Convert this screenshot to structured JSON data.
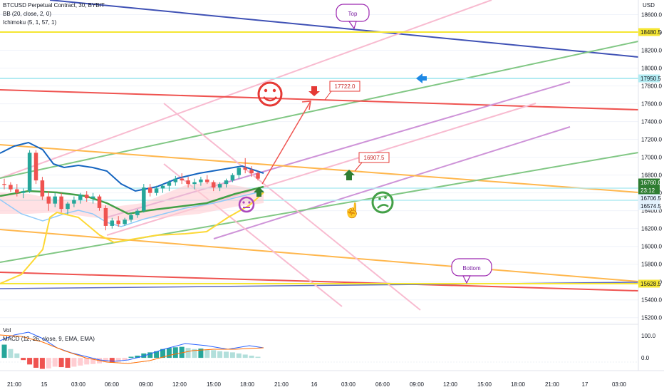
{
  "legend": {
    "symbol": "BTCUSD Perpetual Contract, 30, BYBIT",
    "bb": "BB (20, close, 2, 0)",
    "ichimoku": "Ichimoku (5, 1, 57, 1)",
    "vol": "Vol",
    "macd": "MACD (12, 26, close, 9, EMA, EMA)"
  },
  "price_axis": {
    "currency": "USD",
    "ticks": [
      "18600.0",
      "18400.0",
      "18200.0",
      "18000.0",
      "17800.0",
      "17600.0",
      "17400.0",
      "17200.0",
      "17000.0",
      "16800.0",
      "16600.0",
      "16400.0",
      "16200.0",
      "16000.0",
      "15800.0",
      "15600.0",
      "15400.0",
      "15200.0"
    ]
  },
  "macd_axis": {
    "ticks": [
      "100.0",
      "0.0"
    ]
  },
  "time_axis": {
    "ticks": [
      "21:00",
      "15",
      "03:00",
      "06:00",
      "09:00",
      "12:00",
      "15:00",
      "18:00",
      "21:00",
      "16",
      "03:00",
      "06:00",
      "09:00",
      "12:00",
      "15:00",
      "18:00",
      "21:00",
      "17",
      "03:00"
    ]
  },
  "price_tags": [
    {
      "value": "18480.5",
      "color": "#f5e632",
      "text_color": "#131722"
    },
    {
      "value": "17950.5",
      "color": "#b2ebf2",
      "text_color": "#131722"
    },
    {
      "value": "16760.0",
      "color": "#2e7d32",
      "text_color": "#ffffff"
    },
    {
      "value": "23:12",
      "color": "#2e7d32",
      "text_color": "#ffffff"
    },
    {
      "value": "16706.5",
      "color": "#e3f2fd",
      "text_color": "#131722"
    },
    {
      "value": "16574.5",
      "color": "#e3f2fd",
      "text_color": "#131722"
    },
    {
      "value": "15628.5",
      "color": "#f5e632",
      "text_color": "#131722"
    }
  ],
  "callouts": [
    {
      "name": "top-callout",
      "text": "Top",
      "color": "#9c27b0"
    },
    {
      "name": "bottom-callout",
      "text": "Bottom",
      "color": "#9c27b0"
    },
    {
      "name": "target-17722-callout",
      "text": "17722.0",
      "color": "#e53935"
    },
    {
      "name": "target-16907-callout",
      "text": "16907.5",
      "color": "#e53935"
    }
  ],
  "chart_data": {
    "type": "candlestick",
    "title": "BTCUSD Perpetual Contract, 30, BYBIT",
    "price_range": [
      15150,
      18700
    ],
    "last_price": 16760.0,
    "horizontal_levels": [
      18480.5,
      17950.5,
      16706.5,
      16574.5,
      15628.5
    ],
    "targets": [
      17722.0,
      16907.5
    ],
    "candles_ohlc": [
      [
        16700,
        16760,
        16640,
        16690
      ],
      [
        16690,
        16720,
        16610,
        16640
      ],
      [
        16640,
        16700,
        16560,
        16600
      ],
      [
        16600,
        16650,
        16540,
        16620
      ],
      [
        16620,
        17080,
        16600,
        17050
      ],
      [
        17050,
        17080,
        16700,
        16740
      ],
      [
        16740,
        16780,
        16520,
        16560
      ],
      [
        16560,
        16620,
        16400,
        16480
      ],
      [
        16480,
        16600,
        16440,
        16560
      ],
      [
        16560,
        16600,
        16380,
        16420
      ],
      [
        16420,
        16500,
        16360,
        16480
      ],
      [
        16480,
        16560,
        16440,
        16520
      ],
      [
        16520,
        16600,
        16480,
        16580
      ],
      [
        16580,
        16620,
        16500,
        16540
      ],
      [
        16540,
        16600,
        16480,
        16560
      ],
      [
        16560,
        16580,
        16400,
        16430
      ],
      [
        16430,
        16460,
        16180,
        16230
      ],
      [
        16230,
        16320,
        16200,
        16290
      ],
      [
        16290,
        16340,
        16220,
        16250
      ],
      [
        16250,
        16320,
        16230,
        16300
      ],
      [
        16300,
        16380,
        16270,
        16350
      ],
      [
        16350,
        16420,
        16320,
        16400
      ],
      [
        16400,
        16700,
        16380,
        16660
      ],
      [
        16660,
        16700,
        16560,
        16600
      ],
      [
        16600,
        16680,
        16570,
        16650
      ],
      [
        16650,
        16700,
        16600,
        16680
      ],
      [
        16680,
        16740,
        16620,
        16720
      ],
      [
        16720,
        16790,
        16680,
        16760
      ],
      [
        16760,
        16820,
        16700,
        16740
      ],
      [
        16740,
        16780,
        16660,
        16700
      ],
      [
        16700,
        16760,
        16640,
        16720
      ],
      [
        16720,
        16780,
        16680,
        16750
      ],
      [
        16750,
        16800,
        16700,
        16720
      ],
      [
        16720,
        16740,
        16620,
        16660
      ],
      [
        16660,
        16720,
        16620,
        16700
      ],
      [
        16700,
        16760,
        16660,
        16740
      ],
      [
        16740,
        16820,
        16720,
        16800
      ],
      [
        16800,
        16900,
        16760,
        16880
      ],
      [
        16880,
        16990,
        16820,
        16860
      ],
      [
        16860,
        16900,
        16780,
        16820
      ],
      [
        16820,
        16840,
        16740,
        16760
      ]
    ],
    "macd": {
      "histogram": [
        60,
        40,
        20,
        -10,
        -30,
        -45,
        -50,
        -48,
        -40,
        -42,
        -45,
        -40,
        -35,
        -30,
        -28,
        -25,
        -20,
        -22,
        -18,
        -10,
        5,
        10,
        20,
        25,
        30,
        40,
        45,
        48,
        50,
        45,
        40,
        42,
        38,
        35,
        30,
        28,
        25,
        20,
        15,
        10,
        5
      ],
      "range": [
        -45,
        120
      ]
    },
    "series": [
      {
        "name": "BB (20, close, 2, 0)"
      },
      {
        "name": "Ichimoku (5, 1, 57, 1)"
      },
      {
        "name": "MACD (12, 26, close, 9, EMA, EMA)"
      }
    ]
  }
}
